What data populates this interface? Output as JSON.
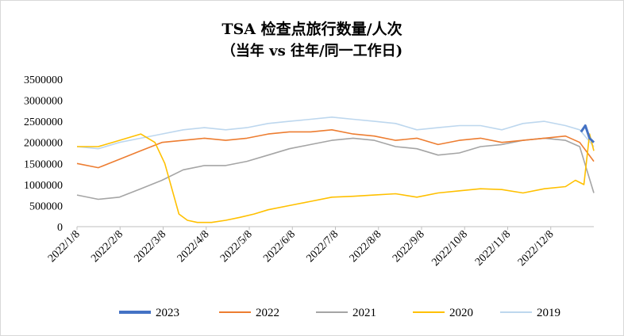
{
  "chart_data": {
    "type": "line",
    "title": "TSA 检查点旅行数量/人次",
    "subtitle": "（当年 vs 往年/同一工作日)",
    "xlabel": "",
    "ylabel": "",
    "ylim": [
      0,
      3500000
    ],
    "y_ticks": [
      "0",
      "500000",
      "1000000",
      "1500000",
      "2000000",
      "2500000",
      "3000000",
      "3500000"
    ],
    "x_ticks": [
      "2022/1/8",
      "2022/2/8",
      "2022/3/8",
      "2022/4/8",
      "2022/5/8",
      "2022/6/8",
      "2022/7/8",
      "2022/8/8",
      "2022/9/8",
      "2022/10/8",
      "2022/11/8",
      "2022/12/8"
    ],
    "grid": false,
    "legend": "bottom",
    "x_range_days": 365,
    "series": [
      {
        "name": "2023",
        "color": "#4472c4",
        "x": [
          356,
          359,
          362,
          365
        ],
        "values": [
          2250000,
          2400000,
          2100000,
          2000000
        ]
      },
      {
        "name": "2022",
        "color": "#ed7d31",
        "x": [
          0,
          15,
          30,
          45,
          60,
          75,
          90,
          105,
          120,
          135,
          150,
          165,
          180,
          195,
          210,
          225,
          240,
          255,
          270,
          285,
          300,
          315,
          330,
          345,
          355,
          365
        ],
        "values": [
          1500000,
          1400000,
          1600000,
          1800000,
          2000000,
          2050000,
          2100000,
          2050000,
          2100000,
          2200000,
          2250000,
          2250000,
          2300000,
          2200000,
          2150000,
          2050000,
          2100000,
          1950000,
          2050000,
          2100000,
          2000000,
          2050000,
          2100000,
          2150000,
          2000000,
          1550000
        ]
      },
      {
        "name": "2021",
        "color": "#a5a5a5",
        "x": [
          0,
          15,
          30,
          45,
          60,
          75,
          90,
          105,
          120,
          135,
          150,
          165,
          180,
          195,
          210,
          225,
          240,
          255,
          270,
          285,
          300,
          315,
          330,
          345,
          355,
          365
        ],
        "values": [
          750000,
          650000,
          700000,
          900000,
          1100000,
          1350000,
          1450000,
          1450000,
          1550000,
          1700000,
          1850000,
          1950000,
          2050000,
          2100000,
          2050000,
          1900000,
          1850000,
          1700000,
          1750000,
          1900000,
          1950000,
          2050000,
          2100000,
          2050000,
          1900000,
          800000
        ]
      },
      {
        "name": "2020",
        "color": "#ffc000",
        "x": [
          0,
          15,
          30,
          45,
          55,
          62,
          67,
          72,
          78,
          85,
          95,
          105,
          115,
          125,
          135,
          150,
          165,
          180,
          195,
          210,
          225,
          240,
          255,
          270,
          285,
          300,
          315,
          330,
          345,
          352,
          358,
          362,
          365
        ],
        "values": [
          1900000,
          1900000,
          2050000,
          2200000,
          2000000,
          1500000,
          900000,
          300000,
          150000,
          100000,
          100000,
          150000,
          220000,
          300000,
          400000,
          500000,
          600000,
          700000,
          720000,
          750000,
          780000,
          700000,
          800000,
          850000,
          900000,
          880000,
          800000,
          900000,
          950000,
          1100000,
          1000000,
          2200000,
          1800000
        ]
      },
      {
        "name": "2019",
        "color": "#bdd7ee",
        "x": [
          0,
          15,
          30,
          45,
          60,
          75,
          90,
          105,
          120,
          135,
          150,
          165,
          180,
          195,
          210,
          225,
          240,
          255,
          270,
          285,
          300,
          315,
          330,
          345,
          355,
          365
        ],
        "values": [
          1900000,
          1850000,
          2000000,
          2100000,
          2200000,
          2300000,
          2350000,
          2300000,
          2350000,
          2450000,
          2500000,
          2550000,
          2600000,
          2550000,
          2500000,
          2450000,
          2300000,
          2350000,
          2400000,
          2400000,
          2300000,
          2450000,
          2500000,
          2400000,
          2300000,
          1900000
        ]
      }
    ]
  }
}
